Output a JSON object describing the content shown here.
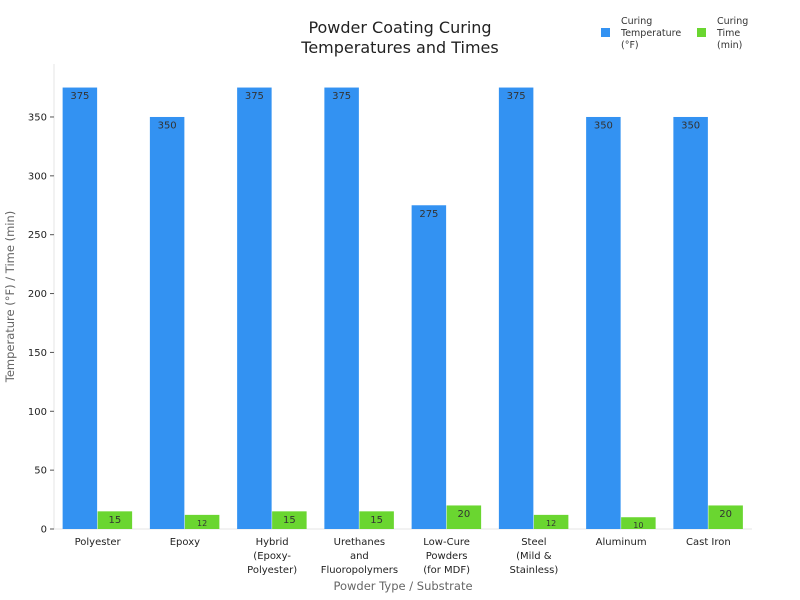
{
  "chart_data": {
    "type": "bar",
    "title": [
      "Powder Coating Curing",
      "Temperatures and Times"
    ],
    "xlabel": "Powder Type / Substrate",
    "ylabel": "Temperature (°F) / Time (min)",
    "ylim": [
      0,
      395
    ],
    "yticks": [
      0,
      50,
      100,
      150,
      200,
      250,
      300,
      350
    ],
    "grid": false,
    "legend_position": "top-right",
    "categories": [
      [
        "Polyester"
      ],
      [
        "Epoxy"
      ],
      [
        "Hybrid",
        "(Epoxy-",
        "Polyester)"
      ],
      [
        "Urethanes",
        "and",
        "Fluoropolymers"
      ],
      [
        "Low-Cure",
        "Powders",
        "(for MDF)"
      ],
      [
        "Steel",
        "(Mild &",
        "Stainless)"
      ],
      [
        "Aluminum"
      ],
      [
        "Cast Iron"
      ]
    ],
    "series": [
      {
        "name": [
          "Curing",
          "Temperature",
          "(°F)"
        ],
        "color": "#3392f2",
        "values": [
          375,
          350,
          375,
          375,
          275,
          375,
          350,
          350
        ]
      },
      {
        "name": [
          "Curing",
          "Time",
          "(min)"
        ],
        "color": "#6ad630",
        "values": [
          15,
          12,
          15,
          15,
          20,
          12,
          10,
          20
        ]
      }
    ]
  }
}
